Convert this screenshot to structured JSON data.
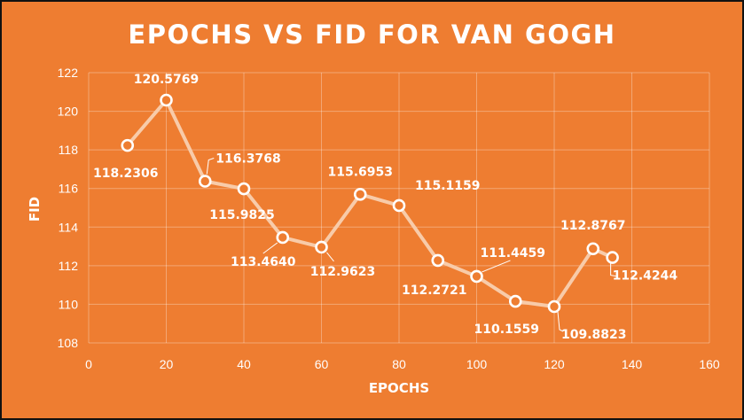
{
  "chart_data": {
    "type": "line",
    "title": "EPOCHS VS FID FOR VAN GOGH",
    "xlabel": "EPOCHS",
    "ylabel": "FID",
    "xlim": [
      0,
      160
    ],
    "ylim": [
      108,
      122
    ],
    "xticks": [
      0,
      20,
      40,
      60,
      80,
      100,
      120,
      140,
      160
    ],
    "yticks": [
      108,
      110,
      112,
      114,
      116,
      118,
      120,
      122
    ],
    "grid": true,
    "legend": "none",
    "colors": {
      "background": "#ee7d31",
      "line": "#f8cba9",
      "text": "#ffffff"
    },
    "series": [
      {
        "x": [
          10,
          20,
          30,
          40,
          50,
          60,
          70,
          80,
          90,
          100,
          110,
          120,
          130,
          135
        ],
        "y": [
          118.2306,
          120.5769,
          116.3768,
          115.9825,
          113.464,
          112.9623,
          115.6953,
          115.1159,
          112.2721,
          111.4459,
          110.1559,
          109.8823,
          112.8767,
          112.4244
        ],
        "labels": [
          "118.2306",
          "120.5769",
          "116.3768",
          "115.9825",
          "113.4640",
          "112.9623",
          "115.6953",
          "115.1159",
          "112.2721",
          "111.4459",
          "110.1559",
          "109.8823",
          "112.8767",
          "112.4244"
        ]
      }
    ]
  }
}
